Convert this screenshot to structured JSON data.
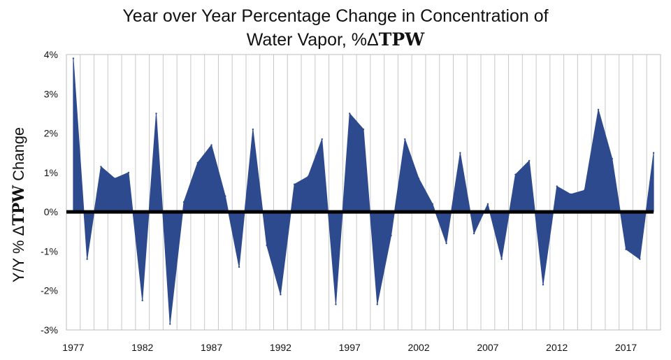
{
  "chart_data": {
    "type": "area",
    "title": {
      "line1": "Year over Year Percentage Change in Concentration of",
      "line2_prefix": "Water Vapor, %Δ",
      "line2_bold": "TPW"
    },
    "ylabel": {
      "prefix": "Y/Y % Δ",
      "bold": "TPW",
      "suffix": " Change"
    },
    "ylim": [
      -3,
      4
    ],
    "yticks": [
      {
        "value": 4,
        "label": "4%"
      },
      {
        "value": 3,
        "label": "3%"
      },
      {
        "value": 2,
        "label": "2%"
      },
      {
        "value": 1,
        "label": "1%"
      },
      {
        "value": 0,
        "label": "0%"
      },
      {
        "value": -1,
        "label": "-1%"
      },
      {
        "value": -2,
        "label": "-2%"
      },
      {
        "value": -3,
        "label": "-3%"
      }
    ],
    "xticks": [
      {
        "value": 1977,
        "label": "1977"
      },
      {
        "value": 1982,
        "label": "1982"
      },
      {
        "value": 1987,
        "label": "1987"
      },
      {
        "value": 1992,
        "label": "1992"
      },
      {
        "value": 1997,
        "label": "1997"
      },
      {
        "value": 2002,
        "label": "2002"
      },
      {
        "value": 2007,
        "label": "2007"
      },
      {
        "value": 2012,
        "label": "2012"
      },
      {
        "value": 2017,
        "label": "2017"
      }
    ],
    "xlim": [
      1977,
      2019
    ],
    "grid": "vertical",
    "color": "#2e4a8f",
    "zero_line_color": "#000000",
    "x": [
      1977,
      1978,
      1979,
      1980,
      1981,
      1982,
      1983,
      1984,
      1985,
      1986,
      1987,
      1988,
      1989,
      1990,
      1991,
      1992,
      1993,
      1994,
      1995,
      1996,
      1997,
      1998,
      1999,
      2000,
      2001,
      2002,
      2003,
      2004,
      2005,
      2006,
      2007,
      2008,
      2009,
      2010,
      2011,
      2012,
      2013,
      2014,
      2015,
      2016,
      2017,
      2018,
      2019
    ],
    "values": [
      3.9,
      -1.2,
      1.15,
      0.85,
      1.0,
      -2.25,
      2.5,
      -2.85,
      0.25,
      1.25,
      1.7,
      0.4,
      -1.4,
      2.1,
      -0.85,
      -2.1,
      0.7,
      0.9,
      1.85,
      -2.35,
      2.5,
      2.1,
      -2.35,
      -0.6,
      1.85,
      0.85,
      0.2,
      -0.8,
      1.5,
      -0.55,
      0.2,
      -1.2,
      0.95,
      1.3,
      -1.85,
      0.65,
      0.45,
      0.55,
      2.6,
      1.35,
      -0.95,
      -1.2,
      1.5
    ]
  }
}
